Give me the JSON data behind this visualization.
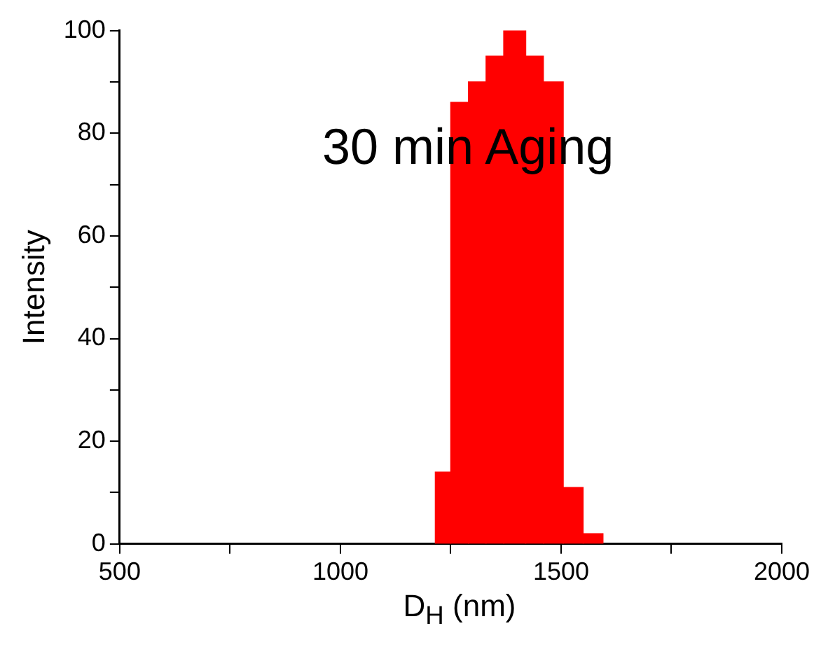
{
  "chart_data": {
    "type": "histogram",
    "xlabel": "D$_{H}$ (nm)",
    "ylabel": "Intensity",
    "annotations": [
      "30 min Aging"
    ],
    "bins": [
      1215,
      1250,
      1290,
      1330,
      1370,
      1420,
      1460,
      1505,
      1550,
      1595
    ],
    "values": [
      14,
      86,
      90,
      95,
      100,
      95,
      90,
      11,
      2
    ],
    "color": "#ff0000",
    "xlim": [
      500,
      2000
    ],
    "xticks": [
      500,
      {
        "value": 750,
        "label": null
      },
      1000,
      {
        "value": 1250,
        "label": null
      },
      1500,
      {
        "value": 1750,
        "label": null
      },
      2000
    ],
    "ylim": [
      0,
      100
    ],
    "yticks": [
      0,
      {
        "value": 10,
        "label": null
      },
      20,
      {
        "value": 30,
        "label": null
      },
      40,
      {
        "value": 50,
        "label": null
      },
      60,
      {
        "value": 70,
        "label": null
      },
      80,
      {
        "value": 90,
        "label": null
      },
      100
    ],
    "grid": false,
    "legend": false
  }
}
